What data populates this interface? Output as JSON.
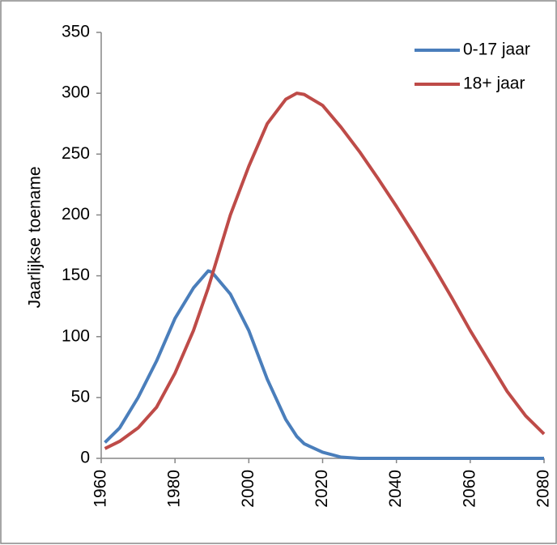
{
  "chart_data": {
    "type": "line",
    "y_label": "Jaarlijkse toename",
    "x": [
      1961,
      1965,
      1970,
      1975,
      1980,
      1985,
      1989,
      1990,
      1995,
      2000,
      2005,
      2010,
      2013,
      2015,
      2020,
      2025,
      2030,
      2035,
      2040,
      2045,
      2050,
      2055,
      2060,
      2065,
      2070,
      2075,
      2080
    ],
    "series": [
      {
        "name": "0-17 jaar",
        "color": "#4a7ebb",
        "values": [
          13,
          25,
          50,
          80,
          115,
          140,
          154,
          153,
          135,
          105,
          65,
          32,
          18,
          12,
          5,
          1,
          0,
          0,
          0,
          0,
          0,
          0,
          0,
          0,
          0,
          0,
          0
        ]
      },
      {
        "name": "18+ jaar",
        "color": "#be4b48",
        "values": [
          8,
          14,
          25,
          42,
          70,
          105,
          140,
          150,
          200,
          240,
          275,
          295,
          300,
          299,
          290,
          272,
          252,
          230,
          207,
          183,
          158,
          132,
          105,
          80,
          55,
          35,
          20
        ]
      }
    ],
    "xlim": [
      1960,
      2080
    ],
    "xticks": [
      1960,
      1980,
      2000,
      2020,
      2040,
      2060,
      2080
    ],
    "ylim": [
      0,
      350
    ],
    "yticks": [
      0,
      50,
      100,
      150,
      200,
      250,
      300,
      350
    ],
    "legend": "upper right",
    "grid": false
  }
}
